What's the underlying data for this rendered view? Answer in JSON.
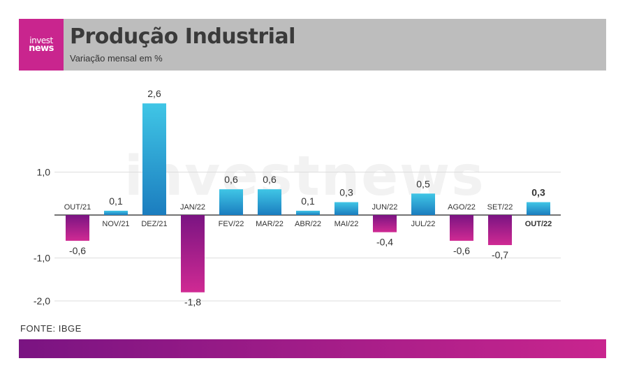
{
  "brand": {
    "line1": "invest",
    "line2": "news",
    "watermark": "investnews"
  },
  "header": {
    "title": "Produção Industrial",
    "subtitle": "Variação mensal em %"
  },
  "footer": {
    "source": "FONTE: IBGE"
  },
  "colors": {
    "positive_top": "#40c6e6",
    "positive_bottom": "#1b7dbf",
    "negative_top": "#7a1482",
    "negative_bottom": "#d02a93",
    "brand": "#c9258e",
    "header_bg": "#bdbdbd"
  },
  "chart_data": {
    "type": "bar",
    "categories": [
      "OUT/21",
      "NOV/21",
      "DEZ/21",
      "JAN/22",
      "FEV/22",
      "MAR/22",
      "ABR/22",
      "MAI/22",
      "JUN/22",
      "JUL/22",
      "AGO/22",
      "SET/22",
      "OUT/22"
    ],
    "values": [
      -0.6,
      0.1,
      2.6,
      -1.8,
      0.6,
      0.6,
      0.1,
      0.3,
      -0.4,
      0.5,
      -0.6,
      -0.7,
      0.3
    ],
    "value_labels": [
      "-0,6",
      "0,1",
      "2,6",
      "-1,8",
      "0,6",
      "0,6",
      "0,1",
      "0,3",
      "-0,4",
      "0,5",
      "-0,6",
      "-0,7",
      "0,3"
    ],
    "highlight": "OUT/22",
    "y_ticks": [
      1.0,
      -1.0,
      -2.0
    ],
    "y_tick_labels": [
      "1,0",
      "-1,0",
      "-2,0"
    ],
    "ylim": [
      -2.0,
      2.6
    ],
    "grid": true,
    "title": "Produção Industrial",
    "subtitle": "Variação mensal em %"
  }
}
